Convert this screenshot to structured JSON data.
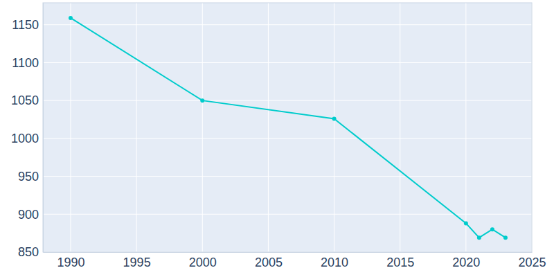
{
  "chart_data": {
    "type": "line",
    "x": [
      1990,
      2000,
      2010,
      2020,
      2021,
      2022,
      2023
    ],
    "values": [
      1159,
      1050,
      1026,
      888,
      869,
      880,
      869
    ],
    "color": "#00cccc",
    "marker": "circle",
    "xlim": [
      1987.9,
      2025
    ],
    "ylim": [
      850,
      1179
    ],
    "xticks": [
      1990,
      1995,
      2000,
      2005,
      2010,
      2015,
      2020,
      2025
    ],
    "yticks": [
      850,
      900,
      950,
      1000,
      1050,
      1100,
      1150
    ],
    "grid": true
  }
}
